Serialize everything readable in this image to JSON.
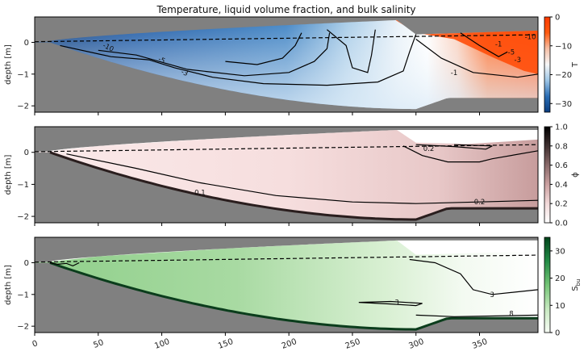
{
  "chart_data": {
    "type": "heatmap",
    "title": "Temperature, liquid volume fraction, and bulk salinity",
    "x_ticks": [
      0,
      50,
      100,
      150,
      200,
      250,
      300,
      350
    ],
    "x_range": [
      0,
      396
    ],
    "y_ticks": [
      0,
      -1,
      -2
    ],
    "y_range": [
      -2.2,
      0.8
    ],
    "panels": [
      {
        "id": "temperature",
        "ylabel": "depth [m]",
        "colorbar_label": "T",
        "colorbar_ticks": [
          "0",
          "−10",
          "−20",
          "−30"
        ],
        "colorbar_range": [
          -33,
          0
        ],
        "colormap": [
          "#0b3c7e",
          "#2a6db4",
          "#9ec6e6",
          "#f7f7f7",
          "#f6bfa6",
          "#ff5a10",
          "#ff3a00"
        ],
        "contour_labels": [
          "-10",
          "-5",
          "-3",
          "-1",
          "-5",
          "-3",
          "-1",
          "-10"
        ]
      },
      {
        "id": "liquid-fraction",
        "ylabel": "depth [m]",
        "colorbar_label": "ϕ",
        "colorbar_ticks": [
          "1.0",
          "0.8",
          "0.6",
          "0.4",
          "0.2",
          "0.0"
        ],
        "colorbar_range": [
          0,
          1
        ],
        "colormap": [
          "#ffffff",
          "#f2d9d9",
          "#caa0a0",
          "#8a6a6a",
          "#3f3030",
          "#000000"
        ],
        "contour_labels": [
          "0.1",
          "0.2",
          "0.2"
        ]
      },
      {
        "id": "bulk-salinity",
        "ylabel": "depth [m]",
        "colorbar_label": "S_bu",
        "colorbar_ticks": [
          "30",
          "20",
          "10",
          "0"
        ],
        "colorbar_range": [
          0,
          35
        ],
        "colormap": [
          "#f7fcf5",
          "#c7e9c0",
          "#74c476",
          "#238b45",
          "#00441b"
        ],
        "contour_labels": [
          "3",
          "3",
          "8"
        ]
      }
    ],
    "grid": false,
    "legend": "none",
    "background_color": "#808080"
  }
}
